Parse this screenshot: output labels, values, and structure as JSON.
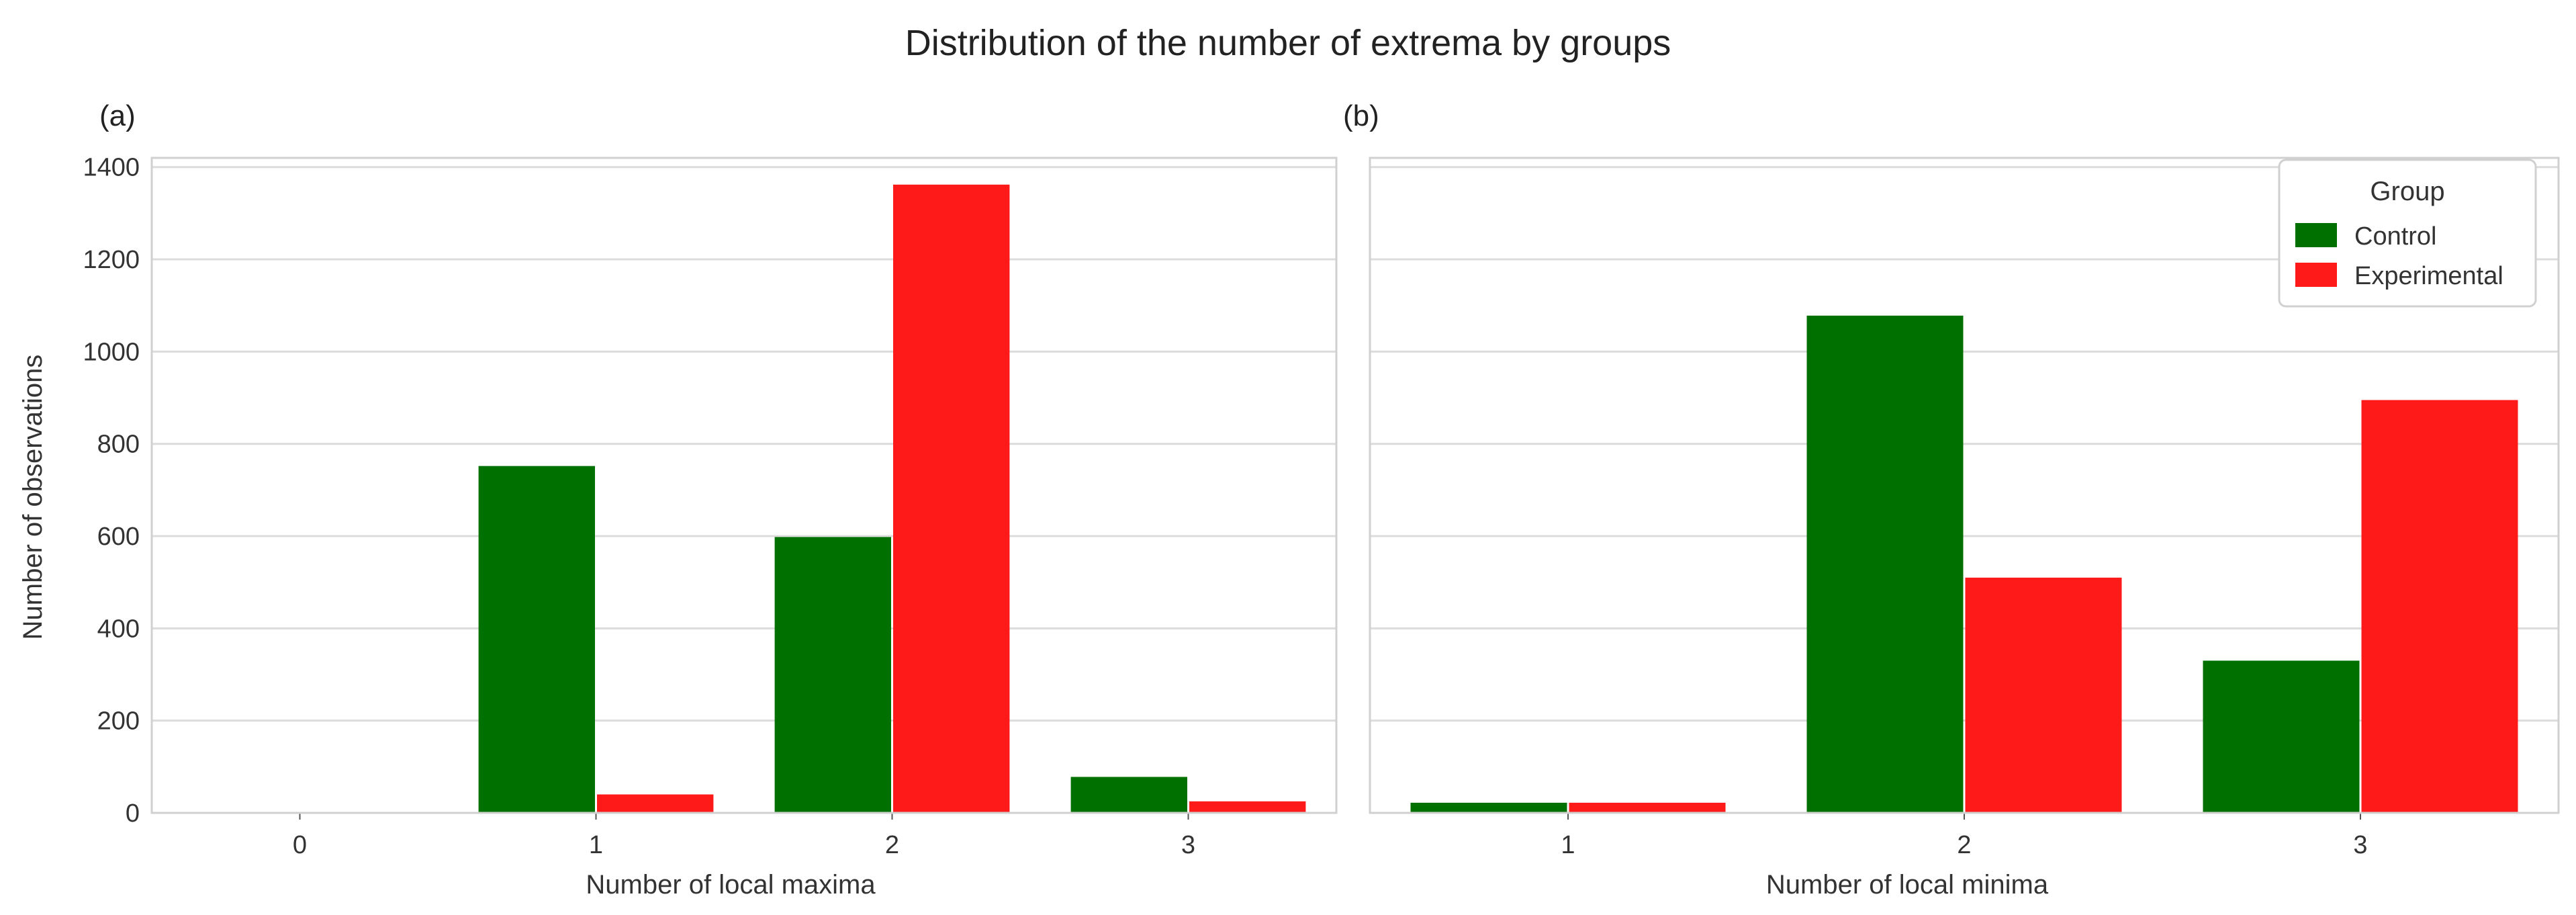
{
  "figure": {
    "title": "Distribution of the number of extrema by groups",
    "colors": {
      "Control": "#007000",
      "Experimental": "#ff1a1a"
    },
    "legend": {
      "title": "Group",
      "placement": "upper-right of panel (b)",
      "entries": [
        "Control",
        "Experimental"
      ]
    }
  },
  "chart_data": [
    {
      "type": "bar",
      "panel": "(a)",
      "xlabel": "Number of local maxima",
      "ylabel": "Number of observations",
      "categories": [
        "0",
        "1",
        "2",
        "3"
      ],
      "ylim": [
        0,
        1420
      ],
      "yticks": [
        0,
        200,
        400,
        600,
        800,
        1000,
        1200,
        1400
      ],
      "grid": "horizontal",
      "series": [
        {
          "name": "Control",
          "values": [
            0,
            752,
            598,
            78
          ]
        },
        {
          "name": "Experimental",
          "values": [
            0,
            40,
            1362,
            25
          ]
        }
      ]
    },
    {
      "type": "bar",
      "panel": "(b)",
      "xlabel": "Number of local minima",
      "ylabel": "",
      "categories": [
        "1",
        "2",
        "3"
      ],
      "ylim": [
        0,
        1420
      ],
      "yticks": [
        0,
        200,
        400,
        600,
        800,
        1000,
        1200,
        1400
      ],
      "grid": "horizontal",
      "series": [
        {
          "name": "Control",
          "values": [
            22,
            1078,
            330
          ]
        },
        {
          "name": "Experimental",
          "values": [
            22,
            510,
            895
          ]
        }
      ]
    }
  ]
}
